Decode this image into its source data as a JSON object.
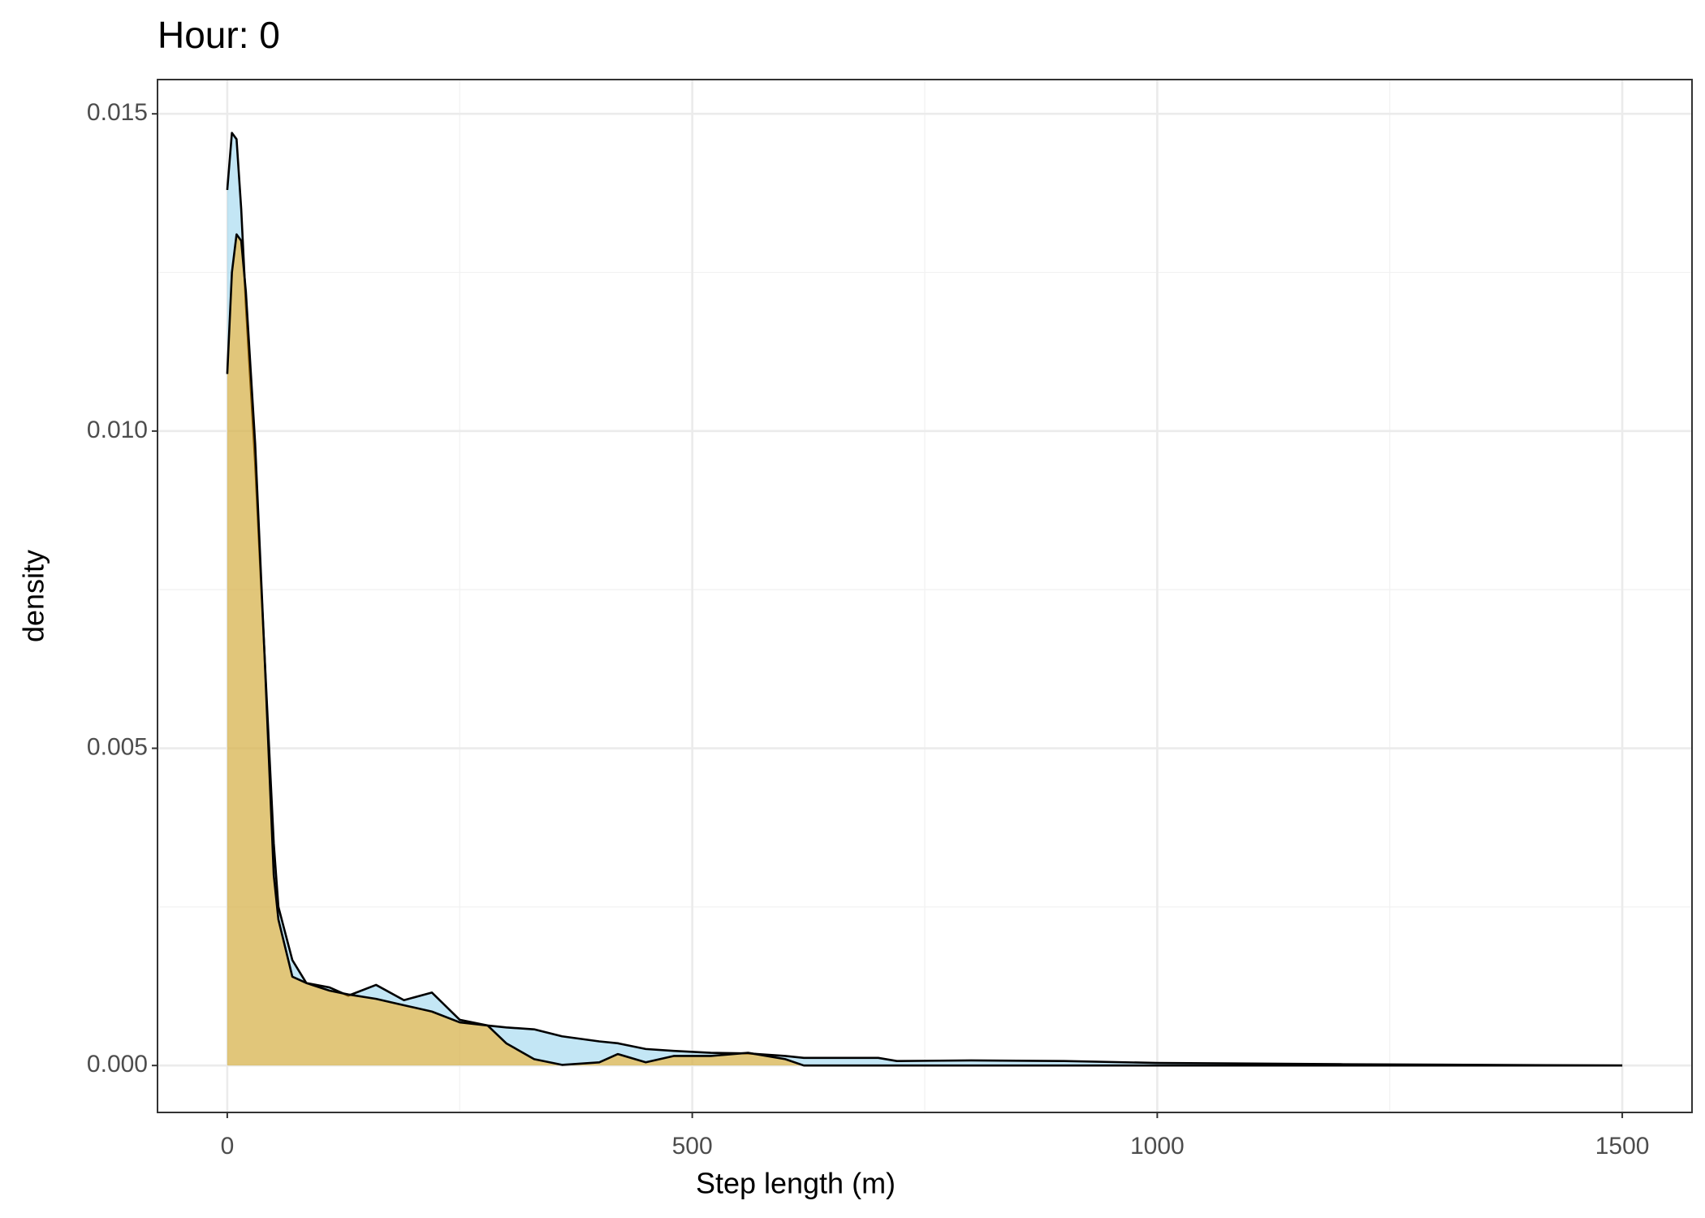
{
  "chart_data": {
    "type": "density",
    "title": "Hour: 0",
    "x_label": "Step length (m)",
    "y_label": "density",
    "x": [
      0,
      5,
      10,
      15,
      20,
      30,
      40,
      50,
      55,
      70,
      85,
      110,
      130,
      160,
      190,
      220,
      250,
      280,
      300,
      330,
      360,
      400,
      420,
      450,
      480,
      520,
      560,
      600,
      620,
      700,
      720,
      800,
      900,
      1000,
      1200,
      1500
    ],
    "series": [
      {
        "color": "#87ceeb",
        "values": [
          0.0138,
          0.0147,
          0.0146,
          0.0135,
          0.012,
          0.0095,
          0.0065,
          0.0035,
          0.0025,
          0.00166,
          0.0013,
          0.00123,
          0.0011,
          0.00127,
          0.00103,
          0.00115,
          0.00072,
          0.00063,
          0.0006,
          0.00057,
          0.00046,
          0.00038,
          0.00035,
          0.00026,
          0.00023,
          0.0002,
          0.00019,
          0.00015,
          0.00012,
          0.00012,
          7e-05,
          8e-05,
          7e-05,
          4e-05,
          2e-05,
          0
        ]
      },
      {
        "color": "#ffa500",
        "values": [
          0.0109,
          0.0125,
          0.0131,
          0.013,
          0.0122,
          0.0098,
          0.0065,
          0.003,
          0.0023,
          0.0014,
          0.0013,
          0.00118,
          0.00112,
          0.00105,
          0.00095,
          0.00085,
          0.00068,
          0.00063,
          0.00035,
          0.0001,
          1e-05,
          5e-05,
          0.00018,
          5e-05,
          0.00015,
          0.00015,
          0.0002,
          0.0001,
          0,
          0,
          0,
          0,
          0,
          0,
          0,
          0
        ]
      }
    ],
    "alpha": 0.5,
    "line_color": "#000000",
    "xlim": [
      -75,
      1575
    ],
    "xticks": [
      0,
      500,
      1000,
      1500
    ],
    "xminor": [
      250,
      750,
      1250
    ],
    "ylim": [
      -0.00074,
      0.01554
    ],
    "yticks": [
      {
        "value": 0,
        "label": "0.000"
      },
      {
        "value": 0.005,
        "label": "0.005"
      },
      {
        "value": 0.01,
        "label": "0.010"
      },
      {
        "value": 0.015,
        "label": "0.015"
      }
    ],
    "yminor": [
      0.0025,
      0.0075,
      0.0125
    ],
    "grid": true
  }
}
